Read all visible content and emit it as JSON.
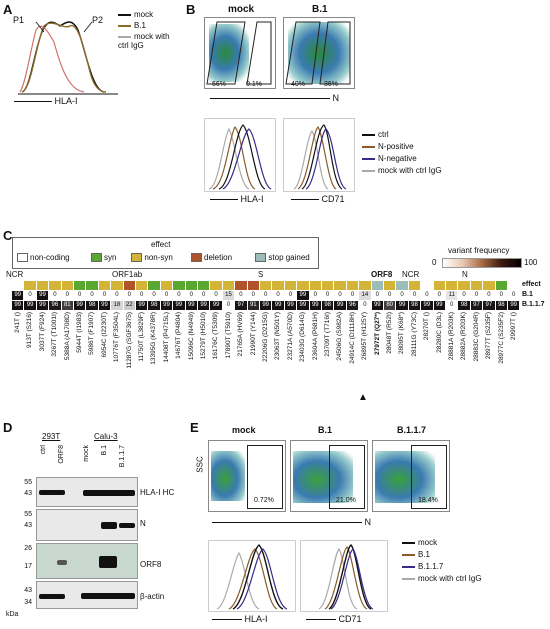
{
  "panels": {
    "A": {
      "letter": "A",
      "p1": "P1",
      "p2": "P2",
      "xlabel": "HLA-I",
      "legend": [
        {
          "label": "mock",
          "color": "#111111"
        },
        {
          "label": "B.1",
          "color": "#8b6d2a"
        },
        {
          "label": "mock with ctrl IgG",
          "color": "#aaaaaa"
        }
      ]
    },
    "B": {
      "letter": "B",
      "col1": "mock",
      "col2": "B.1",
      "mock_pct_left": "66%",
      "mock_pct_right": "0.1%",
      "b1_pct_left": "40%",
      "b1_pct_right": "36%",
      "xlabel_top": "N",
      "xlabel_hla": "HLA-I",
      "xlabel_cd71": "CD71",
      "legend": [
        {
          "label": "ctrl",
          "color": "#111111"
        },
        {
          "label": "N-positive",
          "color": "#8b5a2b"
        },
        {
          "label": "N-negative",
          "color": "#3a2a8a"
        },
        {
          "label": "mock with ctrl IgG",
          "color": "#aaaaaa"
        }
      ]
    },
    "C": {
      "letter": "C",
      "effect_title": "effect",
      "effects": [
        {
          "label": "non-coding",
          "color": "#ffffff"
        },
        {
          "label": "syn",
          "color": "#5aa832"
        },
        {
          "label": "non-syn",
          "color": "#d4b437"
        },
        {
          "label": "deletion",
          "color": "#b0532a"
        },
        {
          "label": "stop gained",
          "color": "#9bbcb8"
        }
      ],
      "variant_freq_title": "variant frequency",
      "vf_min": "0",
      "vf_max": "100",
      "regions": [
        "NCR",
        "ORF1ab",
        "S",
        "ORF8",
        "NCR",
        "N"
      ],
      "row_effect": "effect",
      "row_b1": "B.1",
      "row_b117": "B.1.1.7",
      "b1_values": [
        "99",
        "0",
        "99",
        "0",
        "0",
        "0",
        "0",
        "0",
        "0",
        "0",
        "0",
        "0",
        "0",
        "0",
        "0",
        "0",
        "0",
        "15",
        "0",
        "0",
        "0",
        "0",
        "0",
        "99",
        "0",
        "0",
        "0",
        "0",
        "14",
        "0",
        "0",
        "0",
        "0",
        "0",
        "0",
        "11",
        "0",
        "0",
        "0",
        "0",
        "0"
      ],
      "b117_values": [
        "99",
        "99",
        "99",
        "96",
        "81",
        "99",
        "98",
        "99",
        "18",
        "22",
        "99",
        "98",
        "99",
        "99",
        "99",
        "99",
        "99",
        "0",
        "97",
        "91",
        "99",
        "99",
        "99",
        "99",
        "99",
        "98",
        "99",
        "96",
        "0",
        "99",
        "80",
        "99",
        "98",
        "99",
        "99",
        "0",
        "98",
        "97",
        "97",
        "98",
        "99"
      ],
      "mutations": [
        "241T ()",
        "913T (S216)",
        "3037T (F924)",
        "3267T (T1001I)",
        "5388A (A1708D)",
        "5944T (I1983)",
        "5986T (F1907)",
        "6954C (I2230T)",
        "10776T (F3504L)",
        "11287G (SGF3675)",
        "11750T (L3829F)",
        "13395G (K4378R)",
        "14408T (P4715L)",
        "14676T (P4804)",
        "15096C (N4949)",
        "15279T (H5010)",
        "16176C (T5309)",
        "17890T (T5910)",
        "21765A (HV69)",
        "21990T (Y144)",
        "22206G (D215G)",
        "23063T (N501Y)",
        "23271A (A570D)",
        "23403G (D614G)",
        "23604A (P681H)",
        "23709T (T716I)",
        "24506G (S982A)",
        "24914C (D1118H)",
        "26895T (H125Y)",
        "27972T (Q27*)",
        "28048T (R52I)",
        "28095T (K68*)",
        "28111G (Y73C)",
        "28270T ()",
        "28280C (D3L)",
        "28881A (R203K)",
        "28882A (R203K)",
        "28883C (G204R)",
        "28977T (S235F)",
        "28977C (S235F2)",
        "29997T ()"
      ],
      "orf8_marker": "▲"
    },
    "D": {
      "letter": "D",
      "group1": "293T",
      "group2": "Calu-3",
      "lanes": [
        "ctrl",
        "ORF8",
        "mock",
        "B.1",
        "B.1.1.7"
      ],
      "blots": [
        {
          "name": "HLA-I HC",
          "markers": [
            "55",
            "43"
          ]
        },
        {
          "name": "N",
          "markers": [
            "55",
            "43"
          ]
        },
        {
          "name": "ORF8",
          "markers": [
            "26",
            "17"
          ]
        },
        {
          "name": "β-actin",
          "markers": [
            "43",
            "34"
          ]
        }
      ],
      "kda": "kDa"
    },
    "E": {
      "letter": "E",
      "cols": [
        "mock",
        "B.1",
        "B.1.1.7"
      ],
      "pcts": [
        "0.72%",
        "21.0%",
        "18.4%"
      ],
      "ylabel": "SSC",
      "xlabel_top": "N",
      "xlabel_hla": "HLA-I",
      "xlabel_cd71": "CD71",
      "legend": [
        {
          "label": "mock",
          "color": "#111111"
        },
        {
          "label": "B.1",
          "color": "#8b5a2b"
        },
        {
          "label": "B.1.1.7",
          "color": "#3a2a8a"
        },
        {
          "label": "mock with ctrl IgG",
          "color": "#aaaaaa"
        }
      ]
    }
  }
}
